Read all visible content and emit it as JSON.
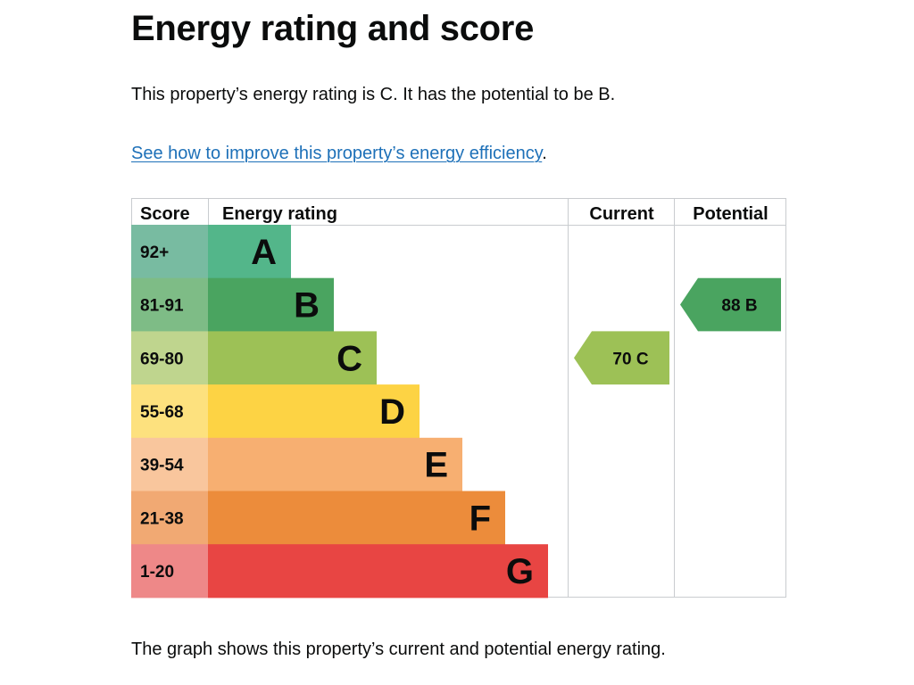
{
  "page": {
    "title": "Energy rating and score",
    "intro": "This property’s energy rating is C. It has the potential to be B.",
    "improve_link": "See how to improve this property’s energy efficiency",
    "improve_suffix": ".",
    "caption": "The graph shows this property’s current and potential energy rating."
  },
  "chart_data": {
    "type": "bar",
    "headers": {
      "score": "Score",
      "rating": "Energy rating",
      "current": "Current",
      "potential": "Potential"
    },
    "bands": [
      {
        "letter": "A",
        "score_range": "92+",
        "color": "#53b68a",
        "score_bg": "#78bba1"
      },
      {
        "letter": "B",
        "score_range": "81-91",
        "color": "#4aa460",
        "score_bg": "#7ebc86"
      },
      {
        "letter": "C",
        "score_range": "69-80",
        "color": "#9dc156",
        "score_bg": "#bfd58e"
      },
      {
        "letter": "D",
        "score_range": "55-68",
        "color": "#fdd344",
        "score_bg": "#fde17e"
      },
      {
        "letter": "E",
        "score_range": "39-54",
        "color": "#f7af71",
        "score_bg": "#f9c69d"
      },
      {
        "letter": "F",
        "score_range": "21-38",
        "color": "#ec8c3b",
        "score_bg": "#f1a973"
      },
      {
        "letter": "G",
        "score_range": "1-20",
        "color": "#e84543",
        "score_bg": "#ee8888"
      }
    ],
    "current": {
      "score": 70,
      "letter": "C",
      "label": "70  C",
      "color": "#9dc156"
    },
    "potential": {
      "score": 88,
      "letter": "B",
      "label": "88  B",
      "color": "#4aa460"
    },
    "grid_color": "#c9cccf"
  }
}
